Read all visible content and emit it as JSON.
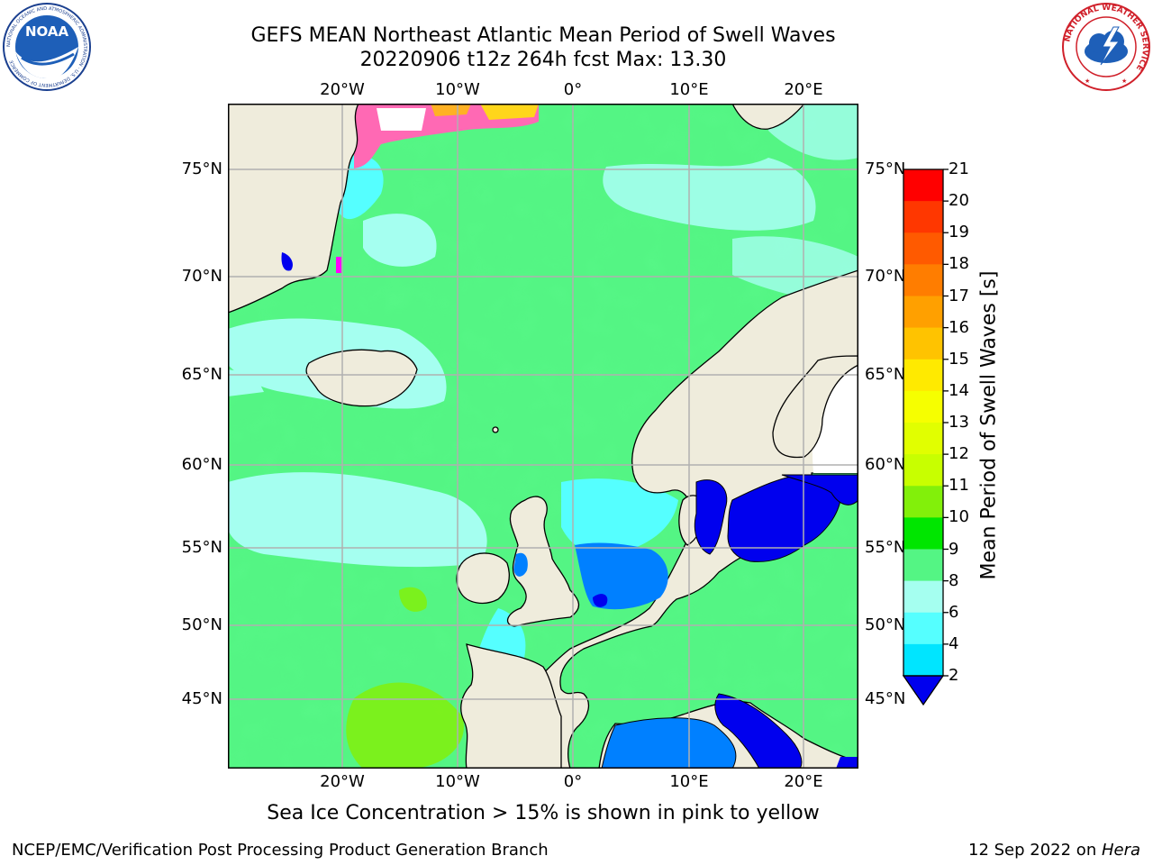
{
  "header": {
    "title_line1": "GEFS MEAN Northeast Atlantic Mean Period of Swell Waves",
    "title_line2": "20220906 t12z 264h fcst   Max: 13.30"
  },
  "logos": {
    "left": {
      "name": "noaa-logo",
      "text": "NOAA",
      "ring_text": "NATIONAL OCEANIC AND ATMOSPHERIC ADMINISTRATION · U.S. DEPARTMENT OF COMMERCE"
    },
    "right": {
      "name": "nws-logo",
      "ring_text": "NATIONAL WEATHER SERVICE"
    }
  },
  "map": {
    "longitude_labels": [
      "20°W",
      "10°W",
      "0°",
      "10°E",
      "20°E"
    ],
    "latitude_labels": [
      "75°N",
      "70°N",
      "65°N",
      "60°N",
      "55°N",
      "50°N",
      "45°N"
    ],
    "colors": {
      "land": "#efecdc",
      "ocean_base": "#54f584",
      "grid": "#b0b0b0",
      "coast": "#000000",
      "sea_ice": "#ff69b4"
    }
  },
  "colorbar": {
    "title": "Mean Period of Swell Waves [s]",
    "labels": [
      "21",
      "20",
      "19",
      "18",
      "17",
      "16",
      "15",
      "14",
      "13",
      "12",
      "11",
      "10",
      "9",
      "8",
      "6",
      "4",
      "2"
    ],
    "colors_top_to_bottom": [
      "#ff0000",
      "#ff3700",
      "#ff5a00",
      "#ff7d00",
      "#ffa000",
      "#ffc300",
      "#ffea00",
      "#f6ff00",
      "#e1ff00",
      "#c8ff00",
      "#82f00a",
      "#00e600",
      "#54f584",
      "#a5fff0",
      "#55ffff",
      "#00e5ff",
      "#0080ff"
    ],
    "extend_color": "#0000ee"
  },
  "footnote": "Sea Ice Concentration > 15% is shown in pink to yellow",
  "credits": {
    "left": "NCEP/EMC/Verification Post Processing Product Generation Branch",
    "right_prefix": "12 Sep 2022 on ",
    "right_host": "Hera"
  }
}
